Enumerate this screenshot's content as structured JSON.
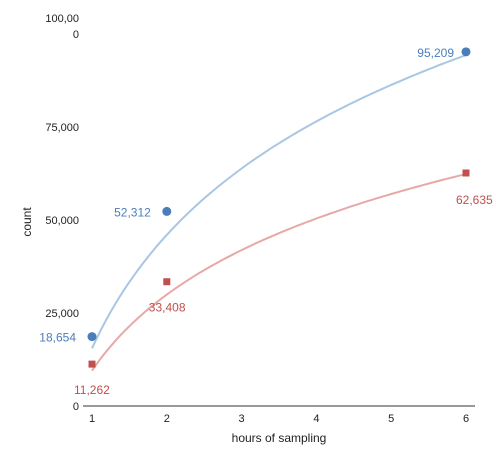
{
  "chart_data": {
    "type": "scatter",
    "xlabel": "hours of sampling",
    "ylabel": "count",
    "xlim": [
      1,
      6
    ],
    "ylim": [
      0,
      100000
    ],
    "x_ticks": [
      "1",
      "2",
      "3",
      "4",
      "5",
      "6"
    ],
    "y_ticks": [
      {
        "value": 0,
        "label": "0"
      },
      {
        "value": 25000,
        "label": "25,000"
      },
      {
        "value": 50000,
        "label": "50,000"
      },
      {
        "value": 75000,
        "label": "75,000"
      },
      {
        "value": 100000,
        "label": "100,000"
      }
    ],
    "grid": false,
    "trendline": "logarithmic",
    "series": [
      {
        "marker": "circle",
        "color": "#4a7ebb",
        "trend_color": "#a9c6e4",
        "points": [
          {
            "x": 1,
            "y": 18654,
            "label": "18,654"
          },
          {
            "x": 2,
            "y": 52312,
            "label": "52,312"
          },
          {
            "x": 6,
            "y": 95209,
            "label": "95,209"
          }
        ],
        "trend": {
          "a": 15500,
          "b": 44000
        }
      },
      {
        "marker": "square",
        "color": "#c0504d",
        "trend_color": "#e6a9a8",
        "points": [
          {
            "x": 1,
            "y": 11262,
            "label": "11,262"
          },
          {
            "x": 2,
            "y": 33408,
            "label": "33,408"
          },
          {
            "x": 6,
            "y": 62635,
            "label": "62,635"
          }
        ],
        "trend": {
          "a": 9500,
          "b": 29500
        }
      }
    ]
  }
}
